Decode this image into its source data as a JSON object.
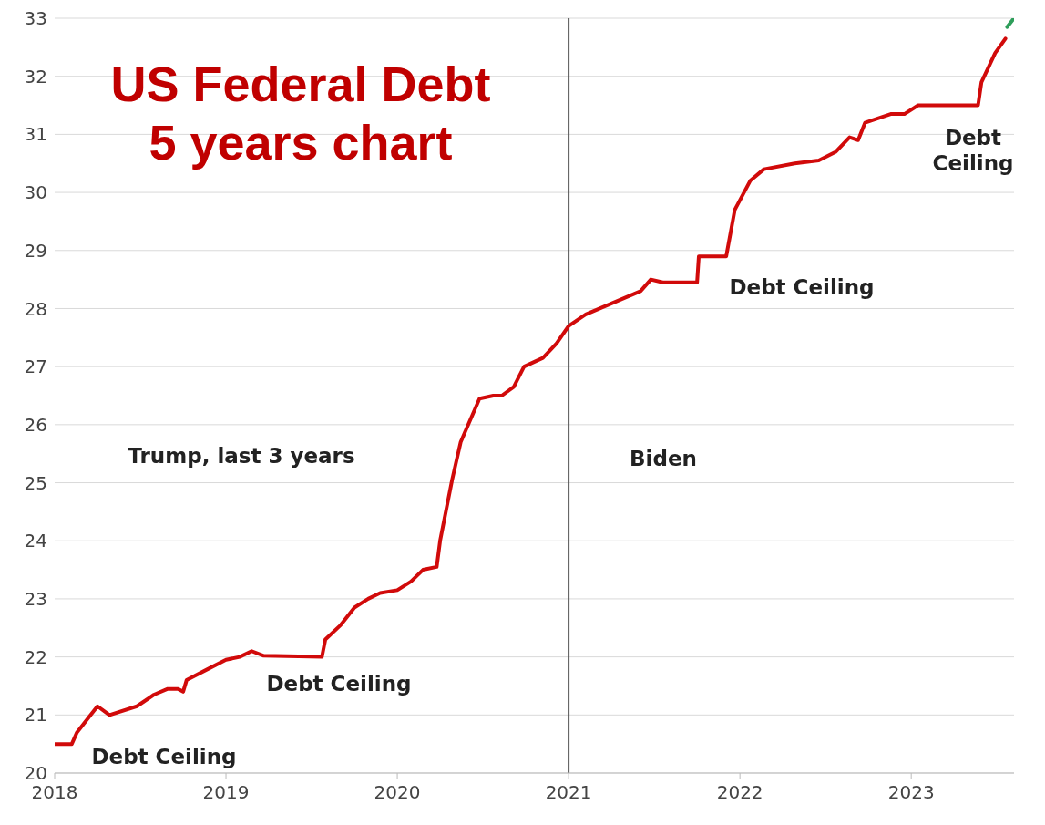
{
  "chart_data": {
    "type": "line",
    "title": "US Federal Debt\n5 years chart",
    "xlim": [
      2018,
      2023.6
    ],
    "xticks": [
      2018,
      2019,
      2020,
      2021,
      2022,
      2023
    ],
    "ylim": [
      20,
      33
    ],
    "yticks": [
      20,
      21,
      22,
      23,
      24,
      25,
      26,
      27,
      28,
      29,
      30,
      31,
      32,
      33
    ],
    "grid": "y",
    "legend": false,
    "marker": "none",
    "line_style": "solid",
    "series": [
      {
        "color": "#d10a0a",
        "x": [
          2018.0,
          2018.1,
          2018.13,
          2018.21,
          2018.25,
          2018.32,
          2018.48,
          2018.58,
          2018.66,
          2018.72,
          2018.75,
          2018.77,
          2018.9,
          2019.0,
          2019.08,
          2019.15,
          2019.22,
          2019.56,
          2019.58,
          2019.67,
          2019.75,
          2019.83,
          2019.9,
          2020.0,
          2020.08,
          2020.15,
          2020.23,
          2020.25,
          2020.32,
          2020.37,
          2020.48,
          2020.56,
          2020.61,
          2020.68,
          2020.74,
          2020.85,
          2020.93,
          2021.0,
          2021.1,
          2021.26,
          2021.42,
          2021.48,
          2021.55,
          2021.75,
          2021.76,
          2021.92,
          2021.97,
          2022.06,
          2022.14,
          2022.32,
          2022.46,
          2022.56,
          2022.64,
          2022.69,
          2022.73,
          2022.88,
          2022.96,
          2023.04,
          2023.39,
          2023.41,
          2023.49,
          2023.55
        ],
        "values": [
          20.5,
          20.5,
          20.7,
          21.0,
          21.15,
          21.0,
          21.15,
          21.35,
          21.45,
          21.45,
          21.4,
          21.6,
          21.8,
          21.95,
          22.0,
          22.1,
          22.02,
          22.0,
          22.3,
          22.55,
          22.85,
          23.0,
          23.1,
          23.15,
          23.3,
          23.5,
          23.55,
          24.0,
          25.05,
          25.7,
          26.45,
          26.5,
          26.5,
          26.65,
          27.0,
          27.15,
          27.4,
          27.7,
          27.9,
          28.1,
          28.3,
          28.5,
          28.45,
          28.45,
          28.9,
          28.9,
          29.7,
          30.2,
          30.4,
          30.5,
          30.55,
          30.7,
          30.95,
          30.9,
          31.2,
          31.35,
          31.35,
          31.5,
          31.5,
          31.9,
          32.4,
          32.65
        ]
      },
      {
        "color": "#2e9e5a",
        "x": [
          2023.56,
          2023.6
        ],
        "values": [
          32.85,
          33.0
        ]
      }
    ],
    "ref_lines": [
      {
        "axis": "x",
        "value": 2021,
        "color": "#555555"
      }
    ],
    "annotations": [
      "Debt Ceiling",
      "Debt Ceiling",
      "Debt Ceiling",
      "Debt\nCeiling",
      "Trump, last 3 years",
      "Biden"
    ]
  }
}
